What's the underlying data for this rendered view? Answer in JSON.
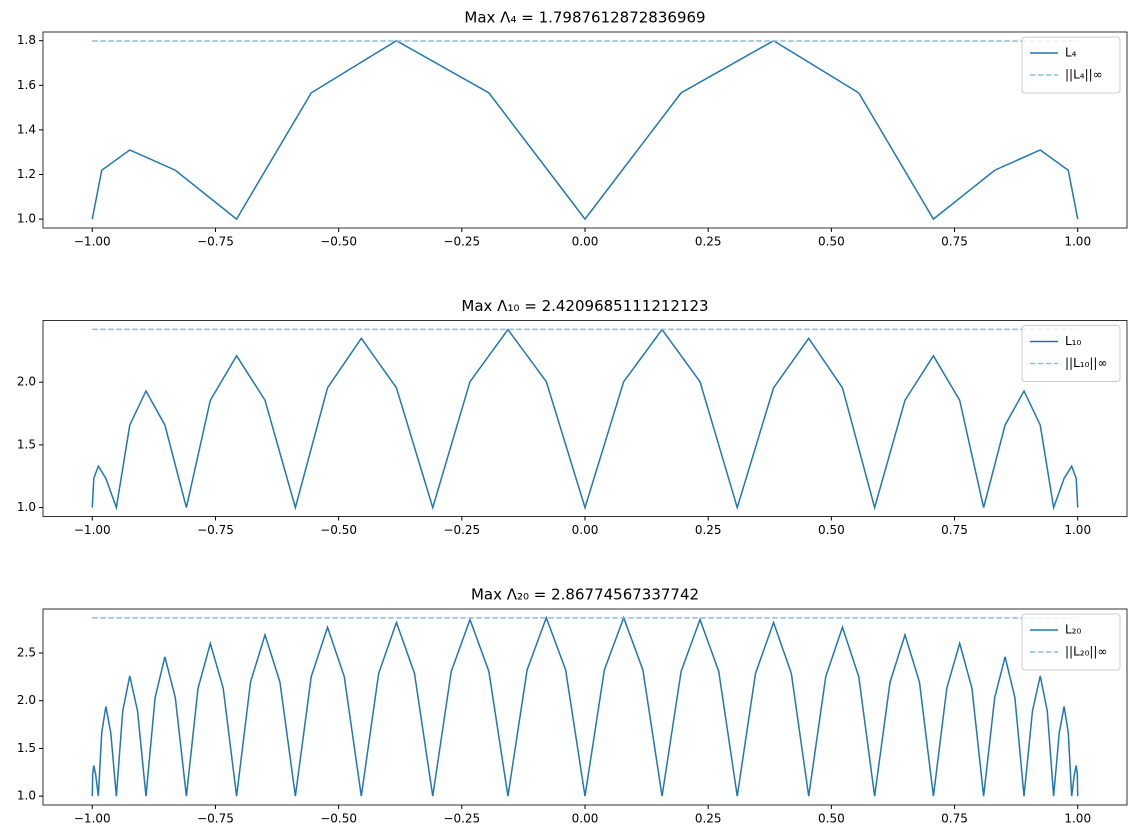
{
  "chart_data": [
    {
      "type": "line",
      "title": "Max Λ₄ = 1.7987612872836969",
      "legend": "upper right",
      "xlim": [
        -1.1,
        1.1
      ],
      "ylim": [
        0.96,
        1.839
      ],
      "xticks": [
        {
          "value": -1,
          "label": "−1.00"
        },
        {
          "value": -0.75,
          "label": "−0.75"
        },
        {
          "value": -0.5,
          "label": "−0.50"
        },
        {
          "value": -0.25,
          "label": "−0.25"
        },
        {
          "value": 0,
          "label": "0.00"
        },
        {
          "value": 0.25,
          "label": "0.25"
        },
        {
          "value": 0.5,
          "label": "0.50"
        },
        {
          "value": 0.75,
          "label": "0.75"
        },
        {
          "value": 1,
          "label": "1.00"
        }
      ],
      "yticks": [
        {
          "value": 1,
          "label": "1.0"
        },
        1.2,
        1.4,
        1.6,
        1.8
      ],
      "series": [
        {
          "name": "L₄",
          "color": "#1f77b4",
          "dashed": false,
          "x": [
            -1,
            -0.9808,
            -0.9239,
            -0.8315,
            -0.7071,
            -0.5556,
            -0.3827,
            -0.1951,
            0,
            0.1951,
            0.3827,
            0.5556,
            0.7071,
            0.8315,
            0.9239,
            0.9808,
            1
          ],
          "values": [
            1,
            1.219,
            1.31,
            1.219,
            1,
            1.566,
            1.8,
            1.566,
            1,
            1.566,
            1.8,
            1.566,
            1,
            1.219,
            1.31,
            1.219,
            1
          ]
        },
        {
          "name": "||L₄||∞",
          "color": "#8fbbd9",
          "dashed": true,
          "x": [
            -1,
            1
          ],
          "values": [
            1.7987612872836969,
            1.7987612872836969
          ]
        }
      ]
    },
    {
      "type": "line",
      "title": "Max Λ₁₀ = 2.4209685111212123",
      "legend": "upper right",
      "xlim": [
        -1.1,
        1.1
      ],
      "ylim": [
        0.929,
        2.492
      ],
      "xticks": [
        {
          "value": -1,
          "label": "−1.00"
        },
        {
          "value": -0.75,
          "label": "−0.75"
        },
        {
          "value": -0.5,
          "label": "−0.50"
        },
        {
          "value": -0.25,
          "label": "−0.25"
        },
        {
          "value": 0,
          "label": "0.00"
        },
        {
          "value": 0.25,
          "label": "0.25"
        },
        {
          "value": 0.5,
          "label": "0.50"
        },
        {
          "value": 0.75,
          "label": "0.75"
        },
        {
          "value": 1,
          "label": "1.00"
        }
      ],
      "yticks": [
        {
          "value": 1,
          "label": "1.0"
        },
        1.5,
        {
          "value": 2,
          "label": "2.0"
        }
      ],
      "series": [
        {
          "name": "L₁₀",
          "color": "#1f77b4",
          "dashed": false,
          "x": [
            -1,
            -0.9969,
            -0.9877,
            -0.9724,
            -0.9511,
            -0.9239,
            -0.891,
            -0.8526,
            -0.809,
            -0.7604,
            -0.7071,
            -0.6494,
            -0.5878,
            -0.5225,
            -0.454,
            -0.3827,
            -0.309,
            -0.2334,
            -0.1564,
            -0.0785,
            0,
            0.0785,
            0.1564,
            0.2334,
            0.309,
            0.3827,
            0.454,
            0.5225,
            0.5878,
            0.6494,
            0.7071,
            0.7604,
            0.809,
            0.8526,
            0.891,
            0.9239,
            0.9511,
            0.9724,
            0.9877,
            0.9969,
            1
          ],
          "values": [
            1,
            1.233,
            1.33,
            1.233,
            1,
            1.658,
            1.93,
            1.658,
            1,
            1.856,
            2.21,
            1.856,
            1,
            1.955,
            2.35,
            1.955,
            1,
            2.004,
            2.42,
            2.004,
            1,
            2.004,
            2.42,
            2.004,
            1,
            1.955,
            2.35,
            1.955,
            1,
            1.856,
            2.21,
            1.856,
            1,
            1.658,
            1.93,
            1.658,
            1,
            1.233,
            1.33,
            1.233,
            1
          ]
        },
        {
          "name": "||L₁₀||∞",
          "color": "#8fbbd9",
          "dashed": true,
          "x": [
            -1,
            1
          ],
          "values": [
            2.4209685111212123,
            2.4209685111212123
          ]
        }
      ]
    },
    {
      "type": "line",
      "title": "Max Λ₂₀ = 2.86774567337742",
      "legend": "upper right",
      "xlim": [
        -1.1,
        1.1
      ],
      "ylim": [
        0.907,
        2.961
      ],
      "xticks": [
        {
          "value": -1,
          "label": "−1.00"
        },
        {
          "value": -0.75,
          "label": "−0.75"
        },
        {
          "value": -0.5,
          "label": "−0.50"
        },
        {
          "value": -0.25,
          "label": "−0.25"
        },
        {
          "value": 0,
          "label": "0.00"
        },
        {
          "value": 0.25,
          "label": "0.25"
        },
        {
          "value": 0.5,
          "label": "0.50"
        },
        {
          "value": 0.75,
          "label": "0.75"
        },
        {
          "value": 1,
          "label": "1.00"
        }
      ],
      "yticks": [
        {
          "value": 1,
          "label": "1.0"
        },
        1.5,
        {
          "value": 2,
          "label": "2.0"
        },
        2.5
      ],
      "series": [
        {
          "name": "L₂₀",
          "color": "#1f77b4",
          "dashed": false,
          "x": [
            -1,
            -0.9992,
            -0.9969,
            -0.9931,
            -0.9877,
            -0.9808,
            -0.9724,
            -0.9625,
            -0.9511,
            -0.9382,
            -0.9239,
            -0.9081,
            -0.891,
            -0.8725,
            -0.8526,
            -0.8315,
            -0.809,
            -0.7853,
            -0.7604,
            -0.7343,
            -0.7071,
            -0.6788,
            -0.6494,
            -0.6191,
            -0.5878,
            -0.5556,
            -0.5225,
            -0.4886,
            -0.454,
            -0.4187,
            -0.3827,
            -0.3461,
            -0.309,
            -0.2714,
            -0.2334,
            -0.1951,
            -0.1564,
            -0.1175,
            -0.0785,
            -0.0393,
            0,
            0.0393,
            0.0785,
            0.1175,
            0.1564,
            0.1951,
            0.2334,
            0.2714,
            0.309,
            0.3461,
            0.3827,
            0.4187,
            0.454,
            0.4886,
            0.5225,
            0.5556,
            0.5878,
            0.6191,
            0.6494,
            0.6788,
            0.7071,
            0.7343,
            0.7604,
            0.7853,
            0.809,
            0.8315,
            0.8526,
            0.8725,
            0.891,
            0.9081,
            0.9239,
            0.9382,
            0.9511,
            0.9625,
            0.9724,
            0.9808,
            0.9877,
            0.9931,
            0.9969,
            0.9992,
            1
          ],
          "values": [
            1,
            1.226,
            1.32,
            1.226,
            1,
            1.665,
            1.94,
            1.665,
            1,
            1.891,
            2.26,
            1.891,
            1,
            2.032,
            2.46,
            2.032,
            1,
            2.131,
            2.6,
            2.131,
            1,
            2.195,
            2.69,
            2.195,
            1,
            2.252,
            2.77,
            2.252,
            1,
            2.287,
            2.82,
            2.287,
            1,
            2.308,
            2.85,
            2.308,
            1,
            2.322,
            2.87,
            2.322,
            1,
            2.322,
            2.87,
            2.322,
            1,
            2.308,
            2.85,
            2.308,
            1,
            2.287,
            2.82,
            2.287,
            1,
            2.252,
            2.77,
            2.252,
            1,
            2.195,
            2.69,
            2.195,
            1,
            2.131,
            2.6,
            2.131,
            1,
            2.032,
            2.46,
            2.032,
            1,
            1.891,
            2.26,
            1.891,
            1,
            1.665,
            1.94,
            1.665,
            1,
            1.226,
            1.32,
            1.226,
            1
          ]
        },
        {
          "name": "||L₂₀||∞",
          "color": "#8fbbd9",
          "dashed": true,
          "x": [
            -1,
            1
          ],
          "values": [
            2.86774567337742,
            2.86774567337742
          ]
        }
      ]
    }
  ]
}
